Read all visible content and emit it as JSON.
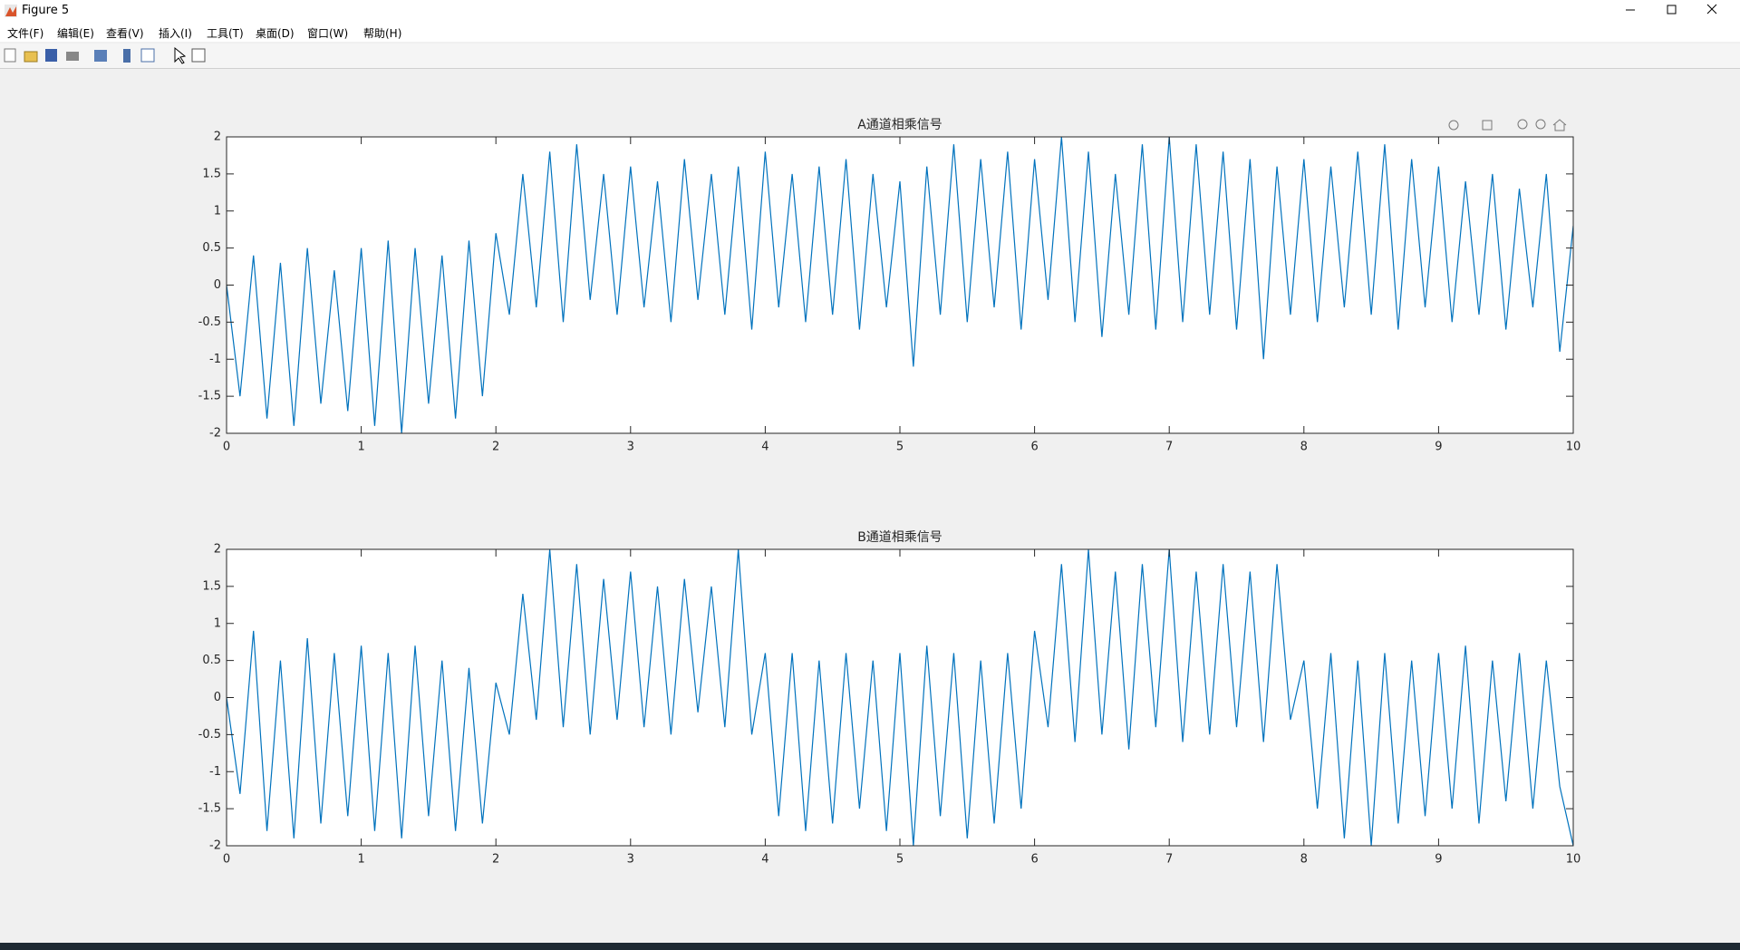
{
  "window_title": "Figure 5",
  "menu": [
    "文件(F)",
    "编辑(E)",
    "查看(V)",
    "插入(I)",
    "工具(T)",
    "桌面(D)",
    "窗口(W)",
    "帮助(H)"
  ],
  "chart_data": [
    {
      "type": "line",
      "title": "A通道相乘信号",
      "color": "#0072bd",
      "x": [
        0,
        0.1,
        0.2,
        0.3,
        0.4,
        0.5,
        0.6,
        0.7,
        0.8,
        0.9,
        1,
        1.1,
        1.2,
        1.3,
        1.4,
        1.5,
        1.6,
        1.7,
        1.8,
        1.9,
        2,
        2.1,
        2.2,
        2.3,
        2.4,
        2.5,
        2.6,
        2.7,
        2.8,
        2.9,
        3,
        3.1,
        3.2,
        3.3,
        3.4,
        3.5,
        3.6,
        3.7,
        3.8,
        3.9,
        4,
        4.1,
        4.2,
        4.3,
        4.4,
        4.5,
        4.6,
        4.7,
        4.8,
        4.9,
        5,
        5.1,
        5.2,
        5.3,
        5.4,
        5.5,
        5.6,
        5.7,
        5.8,
        5.9,
        6,
        6.1,
        6.2,
        6.3,
        6.4,
        6.5,
        6.6,
        6.7,
        6.8,
        6.9,
        7,
        7.1,
        7.2,
        7.3,
        7.4,
        7.5,
        7.6,
        7.7,
        7.8,
        7.9,
        8,
        8.1,
        8.2,
        8.3,
        8.4,
        8.5,
        8.6,
        8.7,
        8.8,
        8.9,
        9,
        9.1,
        9.2,
        9.3,
        9.4,
        9.5,
        9.6,
        9.7,
        9.8,
        9.9,
        10
      ],
      "values": [
        0,
        -1.5,
        0.4,
        -1.8,
        0.3,
        -1.9,
        0.5,
        -1.6,
        0.2,
        -1.7,
        0.5,
        -1.9,
        0.6,
        -2,
        0.5,
        -1.6,
        0.4,
        -1.8,
        0.6,
        -1.5,
        0.7,
        -0.4,
        1.5,
        -0.3,
        1.8,
        -0.5,
        1.9,
        -0.2,
        1.5,
        -0.4,
        1.6,
        -0.3,
        1.4,
        -0.5,
        1.7,
        -0.2,
        1.5,
        -0.4,
        1.6,
        -0.6,
        1.8,
        -0.3,
        1.5,
        -0.5,
        1.6,
        -0.4,
        1.7,
        -0.6,
        1.5,
        -0.3,
        1.4,
        -1.1,
        1.6,
        -0.4,
        1.9,
        -0.5,
        1.7,
        -0.3,
        1.8,
        -0.6,
        1.7,
        -0.2,
        2,
        -0.5,
        1.8,
        -0.7,
        1.5,
        -0.4,
        1.9,
        -0.6,
        2,
        -0.5,
        1.9,
        -0.4,
        1.8,
        -0.6,
        1.7,
        -1,
        1.6,
        -0.4,
        1.7,
        -0.5,
        1.6,
        -0.3,
        1.8,
        -0.4,
        1.9,
        -0.6,
        1.7,
        -0.3,
        1.6,
        -0.5,
        1.4,
        -0.4,
        1.5,
        -0.6,
        1.3,
        -0.3,
        1.5,
        -0.9,
        0.8
      ],
      "xlim": [
        0,
        10
      ],
      "ylim": [
        -2,
        2
      ],
      "xticks": [
        0,
        1,
        2,
        3,
        4,
        5,
        6,
        7,
        8,
        9,
        10
      ],
      "yticks": [
        -2,
        -1.5,
        -1,
        -0.5,
        0,
        0.5,
        1,
        1.5,
        2
      ]
    },
    {
      "type": "line",
      "title": "B通道相乘信号",
      "color": "#0072bd",
      "x": [
        0,
        0.1,
        0.2,
        0.3,
        0.4,
        0.5,
        0.6,
        0.7,
        0.8,
        0.9,
        1,
        1.1,
        1.2,
        1.3,
        1.4,
        1.5,
        1.6,
        1.7,
        1.8,
        1.9,
        2,
        2.1,
        2.2,
        2.3,
        2.4,
        2.5,
        2.6,
        2.7,
        2.8,
        2.9,
        3,
        3.1,
        3.2,
        3.3,
        3.4,
        3.5,
        3.6,
        3.7,
        3.8,
        3.9,
        4,
        4.1,
        4.2,
        4.3,
        4.4,
        4.5,
        4.6,
        4.7,
        4.8,
        4.9,
        5,
        5.1,
        5.2,
        5.3,
        5.4,
        5.5,
        5.6,
        5.7,
        5.8,
        5.9,
        6,
        6.1,
        6.2,
        6.3,
        6.4,
        6.5,
        6.6,
        6.7,
        6.8,
        6.9,
        7,
        7.1,
        7.2,
        7.3,
        7.4,
        7.5,
        7.6,
        7.7,
        7.8,
        7.9,
        8,
        8.1,
        8.2,
        8.3,
        8.4,
        8.5,
        8.6,
        8.7,
        8.8,
        8.9,
        9,
        9.1,
        9.2,
        9.3,
        9.4,
        9.5,
        9.6,
        9.7,
        9.8,
        9.9,
        10
      ],
      "values": [
        0,
        -1.3,
        0.9,
        -1.8,
        0.5,
        -1.9,
        0.8,
        -1.7,
        0.6,
        -1.6,
        0.7,
        -1.8,
        0.6,
        -1.9,
        0.7,
        -1.6,
        0.5,
        -1.8,
        0.4,
        -1.7,
        0.2,
        -0.5,
        1.4,
        -0.3,
        2,
        -0.4,
        1.8,
        -0.5,
        1.6,
        -0.3,
        1.7,
        -0.4,
        1.5,
        -0.5,
        1.6,
        -0.2,
        1.5,
        -0.4,
        2,
        -0.5,
        0.6,
        -1.6,
        0.6,
        -1.8,
        0.5,
        -1.7,
        0.6,
        -1.5,
        0.5,
        -1.8,
        0.6,
        -2,
        0.7,
        -1.6,
        0.6,
        -1.9,
        0.5,
        -1.7,
        0.6,
        -1.5,
        0.9,
        -0.4,
        1.8,
        -0.6,
        2,
        -0.5,
        1.7,
        -0.7,
        1.8,
        -0.4,
        2,
        -0.6,
        1.7,
        -0.5,
        1.8,
        -0.4,
        1.7,
        -0.6,
        1.8,
        -0.3,
        0.5,
        -1.5,
        0.6,
        -1.9,
        0.5,
        -2,
        0.6,
        -1.7,
        0.5,
        -1.6,
        0.6,
        -1.5,
        0.7,
        -1.7,
        0.5,
        -1.4,
        0.6,
        -1.5,
        0.5,
        -1.2,
        -2
      ],
      "xlim": [
        0,
        10
      ],
      "ylim": [
        -2,
        2
      ],
      "xticks": [
        0,
        1,
        2,
        3,
        4,
        5,
        6,
        7,
        8,
        9,
        10
      ],
      "yticks": [
        -2,
        -1.5,
        -1,
        -0.5,
        0,
        0.5,
        1,
        1.5,
        2
      ]
    }
  ]
}
